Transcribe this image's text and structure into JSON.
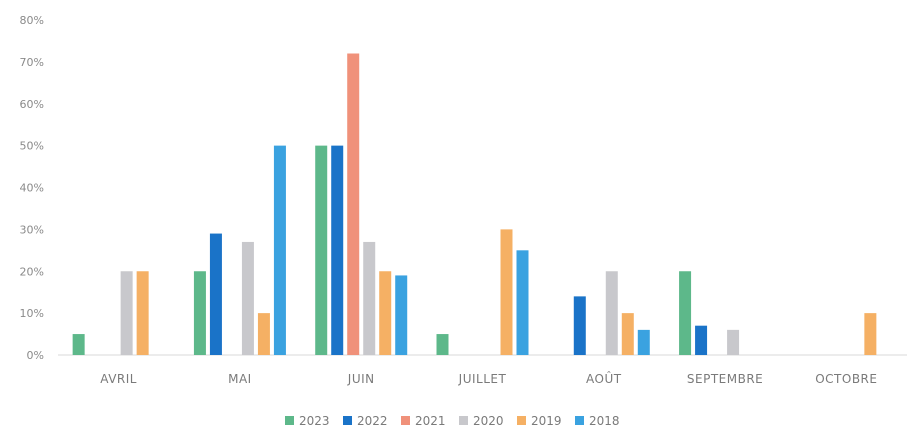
{
  "chart_data": {
    "type": "bar",
    "categories": [
      "AVRIL",
      "MAI",
      "JUIN",
      "JUILLET",
      "AOÛT",
      "SEPTEMBRE",
      "OCTOBRE"
    ],
    "series": [
      {
        "name": "2023",
        "color": "#5db88a",
        "values": [
          5,
          20,
          50,
          5,
          0,
          20,
          0
        ]
      },
      {
        "name": "2022",
        "color": "#1a73c8",
        "values": [
          0,
          29,
          50,
          0,
          14,
          7,
          0
        ]
      },
      {
        "name": "2021",
        "color": "#f0917a",
        "values": [
          0,
          0,
          72,
          0,
          0,
          0,
          0
        ]
      },
      {
        "name": "2020",
        "color": "#c8c8cc",
        "values": [
          20,
          27,
          27,
          0,
          20,
          6,
          0
        ]
      },
      {
        "name": "2019",
        "color": "#f5b064",
        "values": [
          20,
          10,
          20,
          30,
          10,
          0,
          10
        ]
      },
      {
        "name": "2018",
        "color": "#3aa2e0",
        "values": [
          0,
          50,
          19,
          25,
          6,
          0,
          0
        ]
      }
    ],
    "ylim": [
      0,
      80
    ],
    "yticks": [
      "0%",
      "10%",
      "20%",
      "30%",
      "40%",
      "50%",
      "60%",
      "70%",
      "80%"
    ],
    "ytick_values": [
      0,
      10,
      20,
      30,
      40,
      50,
      60,
      70,
      80
    ],
    "grid": false,
    "legend_position": "bottom"
  }
}
